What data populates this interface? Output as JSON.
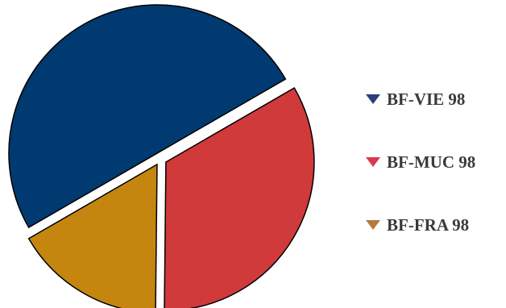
{
  "chart_data": {
    "type": "pie",
    "title": "",
    "categories": [
      "BF-VIE 98",
      "BF-MUC 98",
      "BF-FRA 98"
    ],
    "values": [
      50,
      33.5,
      16.5
    ],
    "colors": [
      "#003a70",
      "#d13a3a",
      "#c4860f"
    ],
    "legend_marker_colors": [
      "#2d3d7a",
      "#d83a52",
      "#b57a3c"
    ],
    "exploded": true,
    "legend": "right"
  }
}
